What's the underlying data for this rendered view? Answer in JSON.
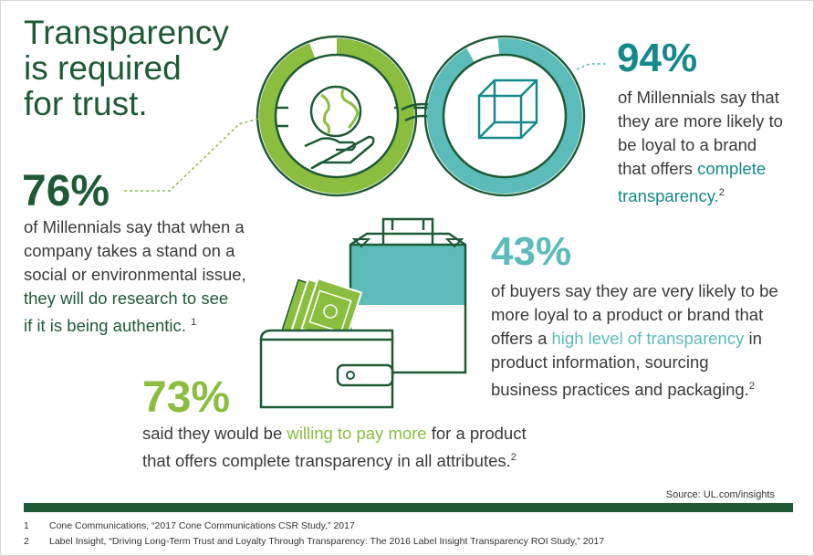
{
  "title_lines": [
    "Transparency",
    "is required",
    "for trust."
  ],
  "stat_94": {
    "value": "94%",
    "lines": [
      "of Millennials say that",
      "they are more likely to",
      "be loyal to a brand"
    ],
    "line4_prefix": "that offers ",
    "line4_highlight": "complete",
    "line5_highlight": "transparency.",
    "line5_sup": "2"
  },
  "stat_76": {
    "value": "76%",
    "lines": [
      "of Millennials say that when a",
      "company takes a stand on a",
      "social or environmental issue,"
    ],
    "highlight_lines": [
      "they will do research to see",
      "if it is being authentic."
    ],
    "sup": "1"
  },
  "stat_43": {
    "value": "43%",
    "line1": "of buyers say they are very likely to be",
    "line2": "more loyal to a product or brand that",
    "line3_prefix": "offers a ",
    "line3_highlight": "high level of transparency",
    "line3_suffix": " in",
    "line4": "product information, sourcing",
    "line5": "business practices and packaging.",
    "sup": "2"
  },
  "stat_73": {
    "value": "73%",
    "line1_prefix": "said they would be ",
    "line1_highlight": "willing to pay more",
    "line1_suffix": " for a product",
    "line2": "that offers complete transparency in all attributes.",
    "sup": "2"
  },
  "source": "Source: UL.com/insights",
  "footnotes": [
    {
      "num": "1",
      "text": "Cone Communications, “2017 Cone Communications CSR Study,” 2017"
    },
    {
      "num": "2",
      "text": "Label Insight, “Driving Long-Term Trust and Loyalty Through Transparency: The 2016 Label Insight Transparency ROI Study,” 2017"
    }
  ],
  "icons": [
    "glasses-icon",
    "globe-icon",
    "hand-icon",
    "cube-icon",
    "shopping-bag-icon",
    "wallet-icon",
    "cash-icon"
  ],
  "colors": {
    "dark_green": "#1e5a36",
    "teal": "#15898a",
    "light_teal": "#5bbcb9",
    "lime": "#8bbd3f"
  }
}
